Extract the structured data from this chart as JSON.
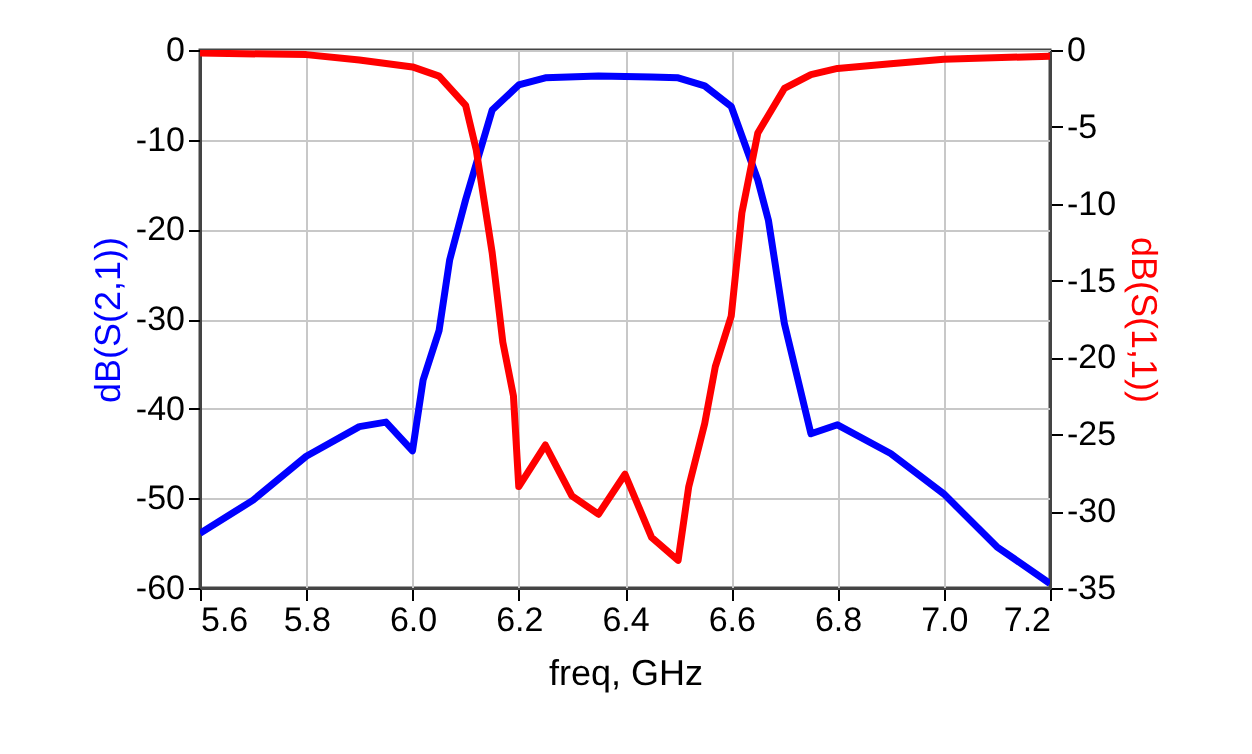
{
  "chart_data": {
    "type": "line",
    "xlabel": "freq, GHz",
    "ylabel": "dB(S(2,1))",
    "y2label": "dB(S(1,1))",
    "xlim": [
      5.6,
      7.2
    ],
    "xticks": [
      5.6,
      5.8,
      {
        "value": 6,
        "label": "6.0"
      },
      6.2,
      6.4,
      6.6,
      6.8,
      {
        "value": 7,
        "label": "7.0"
      },
      7.2
    ],
    "ylim": [
      -60,
      0
    ],
    "yticks": [
      -60,
      -50,
      -40,
      -30,
      -20,
      -10,
      0
    ],
    "y2lim": [
      -35,
      0
    ],
    "y2ticks": [
      -35,
      -30,
      -25,
      -20,
      -15,
      -10,
      -5,
      0
    ],
    "grid": true,
    "series": [
      {
        "color": "#0000ff",
        "x": [
          5.6,
          5.7,
          5.8,
          5.9,
          5.95,
          6.0,
          6.02,
          6.05,
          6.07,
          6.1,
          6.15,
          6.2,
          6.25,
          6.35,
          6.45,
          6.5,
          6.55,
          6.6,
          6.65,
          6.67,
          6.7,
          6.75,
          6.8,
          6.9,
          7.0,
          7.1,
          7.2
        ],
        "values": [
          -53.9,
          -50.2,
          -45.3,
          -42,
          -41.5,
          -44.7,
          -36.8,
          -31.3,
          -23.4,
          -16.7,
          -6.7,
          -3.9,
          -3.1,
          -2.9,
          -3.0,
          -3.1,
          -4,
          -6.3,
          -14.5,
          -19,
          -30.5,
          -42.8,
          -41.8,
          -45,
          -49.5,
          -55.4,
          -59.5
        ]
      },
      {
        "color": "#ff0000",
        "axis": "y2",
        "x": [
          5.6,
          5.8,
          5.9,
          6.0,
          6.05,
          6.1,
          6.12,
          6.15,
          6.17,
          6.19,
          6.2,
          6.25,
          6.3,
          6.35,
          6.4,
          6.45,
          6.5,
          6.52,
          6.55,
          6.57,
          6.6,
          6.62,
          6.65,
          6.7,
          6.75,
          6.8,
          6.9,
          7.0,
          7.2
        ],
        "values": [
          -0.2,
          -0.3,
          -0.65,
          -1.1,
          -1.7,
          -3.6,
          -6.5,
          -13.2,
          -19,
          -22.5,
          -28.4,
          -25.7,
          -29,
          -30.2,
          -27.6,
          -31.7,
          -33.2,
          -28.4,
          -24.3,
          -20.6,
          -17.3,
          -10.6,
          -5.4,
          -2.5,
          -1.6,
          -1.2,
          -0.9,
          -0.6,
          -0.4
        ]
      }
    ]
  }
}
